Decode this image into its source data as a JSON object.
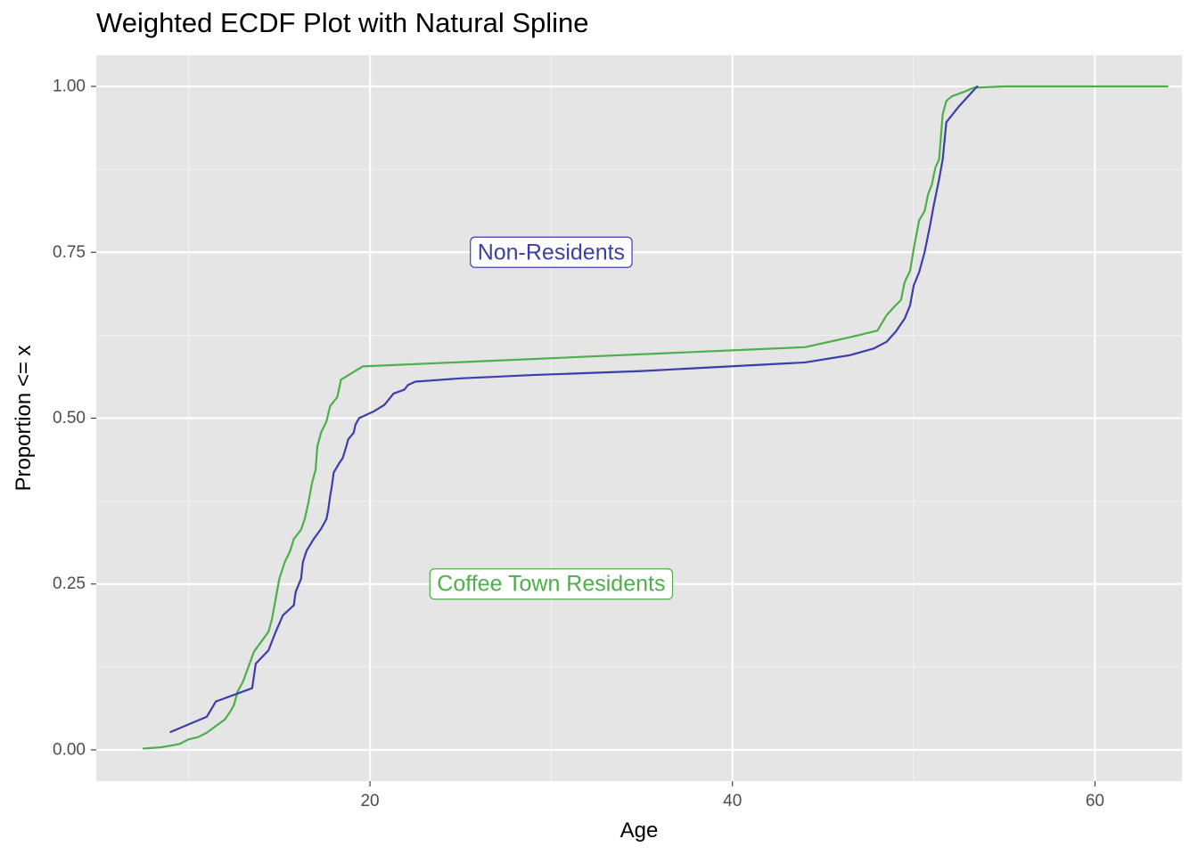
{
  "chart_data": {
    "type": "line",
    "title": "Weighted ECDF Plot with Natural Spline",
    "xlabel": "Age",
    "ylabel": "Proportion <= x",
    "xlim": [
      4.9,
      64.8
    ],
    "ylim": [
      -0.047,
      1.047
    ],
    "x_ticks": [
      20,
      40,
      60
    ],
    "x_tick_labels": [
      "20",
      "40",
      "60"
    ],
    "y_ticks": [
      0,
      0.25,
      0.5,
      0.75,
      1.0
    ],
    "y_tick_labels": [
      "0.00",
      "0.25",
      "0.50",
      "0.75",
      "1.00"
    ],
    "grid": true,
    "panel_background": "#e5e5e5",
    "legend": "none",
    "series": [
      {
        "color": "#4daf4a",
        "points": [
          [
            7.5,
            0.002
          ],
          [
            8.5,
            0.004
          ],
          [
            9.5,
            0.009
          ],
          [
            10.0,
            0.016
          ],
          [
            10.5,
            0.019
          ],
          [
            11.0,
            0.026
          ],
          [
            11.5,
            0.036
          ],
          [
            12.0,
            0.046
          ],
          [
            12.3,
            0.058
          ],
          [
            12.5,
            0.068
          ],
          [
            12.7,
            0.088
          ],
          [
            13.0,
            0.103
          ],
          [
            13.2,
            0.118
          ],
          [
            13.4,
            0.133
          ],
          [
            13.6,
            0.148
          ],
          [
            14.0,
            0.163
          ],
          [
            14.4,
            0.178
          ],
          [
            14.6,
            0.198
          ],
          [
            14.8,
            0.228
          ],
          [
            15.0,
            0.258
          ],
          [
            15.3,
            0.283
          ],
          [
            15.6,
            0.3
          ],
          [
            15.8,
            0.318
          ],
          [
            16.2,
            0.332
          ],
          [
            16.4,
            0.348
          ],
          [
            16.6,
            0.372
          ],
          [
            16.8,
            0.402
          ],
          [
            17.0,
            0.422
          ],
          [
            17.1,
            0.458
          ],
          [
            17.3,
            0.478
          ],
          [
            17.6,
            0.495
          ],
          [
            17.8,
            0.518
          ],
          [
            18.2,
            0.532
          ],
          [
            18.4,
            0.558
          ],
          [
            19.6,
            0.578
          ],
          [
            44.0,
            0.607
          ],
          [
            46.5,
            0.622
          ],
          [
            48.0,
            0.632
          ],
          [
            48.5,
            0.655
          ],
          [
            49.0,
            0.67
          ],
          [
            49.3,
            0.678
          ],
          [
            49.5,
            0.705
          ],
          [
            49.8,
            0.722
          ],
          [
            50.0,
            0.755
          ],
          [
            50.3,
            0.798
          ],
          [
            50.6,
            0.812
          ],
          [
            50.8,
            0.838
          ],
          [
            51.0,
            0.852
          ],
          [
            51.2,
            0.878
          ],
          [
            51.4,
            0.89
          ],
          [
            51.6,
            0.958
          ],
          [
            51.8,
            0.978
          ],
          [
            52.1,
            0.985
          ],
          [
            52.8,
            0.992
          ],
          [
            53.3,
            0.998
          ],
          [
            55.0,
            1.0
          ],
          [
            64.0,
            1.0
          ]
        ]
      },
      {
        "color": "#3b3fa8",
        "points": [
          [
            9.0,
            0.027
          ],
          [
            11.0,
            0.05
          ],
          [
            11.5,
            0.073
          ],
          [
            13.5,
            0.093
          ],
          [
            13.7,
            0.13
          ],
          [
            14.4,
            0.15
          ],
          [
            14.8,
            0.178
          ],
          [
            15.2,
            0.203
          ],
          [
            15.8,
            0.218
          ],
          [
            15.9,
            0.238
          ],
          [
            16.2,
            0.258
          ],
          [
            16.3,
            0.283
          ],
          [
            16.5,
            0.3
          ],
          [
            16.9,
            0.318
          ],
          [
            17.3,
            0.333
          ],
          [
            17.6,
            0.348
          ],
          [
            17.7,
            0.362
          ],
          [
            17.8,
            0.382
          ],
          [
            17.9,
            0.398
          ],
          [
            18.0,
            0.418
          ],
          [
            18.3,
            0.432
          ],
          [
            18.5,
            0.44
          ],
          [
            18.7,
            0.458
          ],
          [
            18.8,
            0.468
          ],
          [
            19.1,
            0.478
          ],
          [
            19.2,
            0.49
          ],
          [
            19.4,
            0.5
          ],
          [
            20.2,
            0.51
          ],
          [
            20.8,
            0.52
          ],
          [
            21.3,
            0.537
          ],
          [
            21.9,
            0.543
          ],
          [
            22.1,
            0.55
          ],
          [
            22.5,
            0.555
          ],
          [
            23.5,
            0.557
          ],
          [
            25.0,
            0.56
          ],
          [
            29.0,
            0.565
          ],
          [
            35.0,
            0.571
          ],
          [
            44.0,
            0.584
          ],
          [
            46.5,
            0.595
          ],
          [
            47.8,
            0.605
          ],
          [
            48.5,
            0.615
          ],
          [
            49.0,
            0.63
          ],
          [
            49.5,
            0.65
          ],
          [
            49.8,
            0.67
          ],
          [
            50.0,
            0.7
          ],
          [
            50.3,
            0.72
          ],
          [
            50.6,
            0.75
          ],
          [
            50.9,
            0.79
          ],
          [
            51.1,
            0.82
          ],
          [
            51.4,
            0.86
          ],
          [
            51.6,
            0.89
          ],
          [
            51.8,
            0.946
          ],
          [
            52.5,
            0.97
          ],
          [
            53.5,
            1.0
          ]
        ]
      }
    ],
    "annotations": [
      {
        "text": "Non-Residents",
        "x": 30.0,
        "y": 0.75,
        "color": "#3b3fa8"
      },
      {
        "text": "Coffee Town Residents",
        "x": 30.0,
        "y": 0.25,
        "color": "#4daf4a"
      }
    ]
  }
}
